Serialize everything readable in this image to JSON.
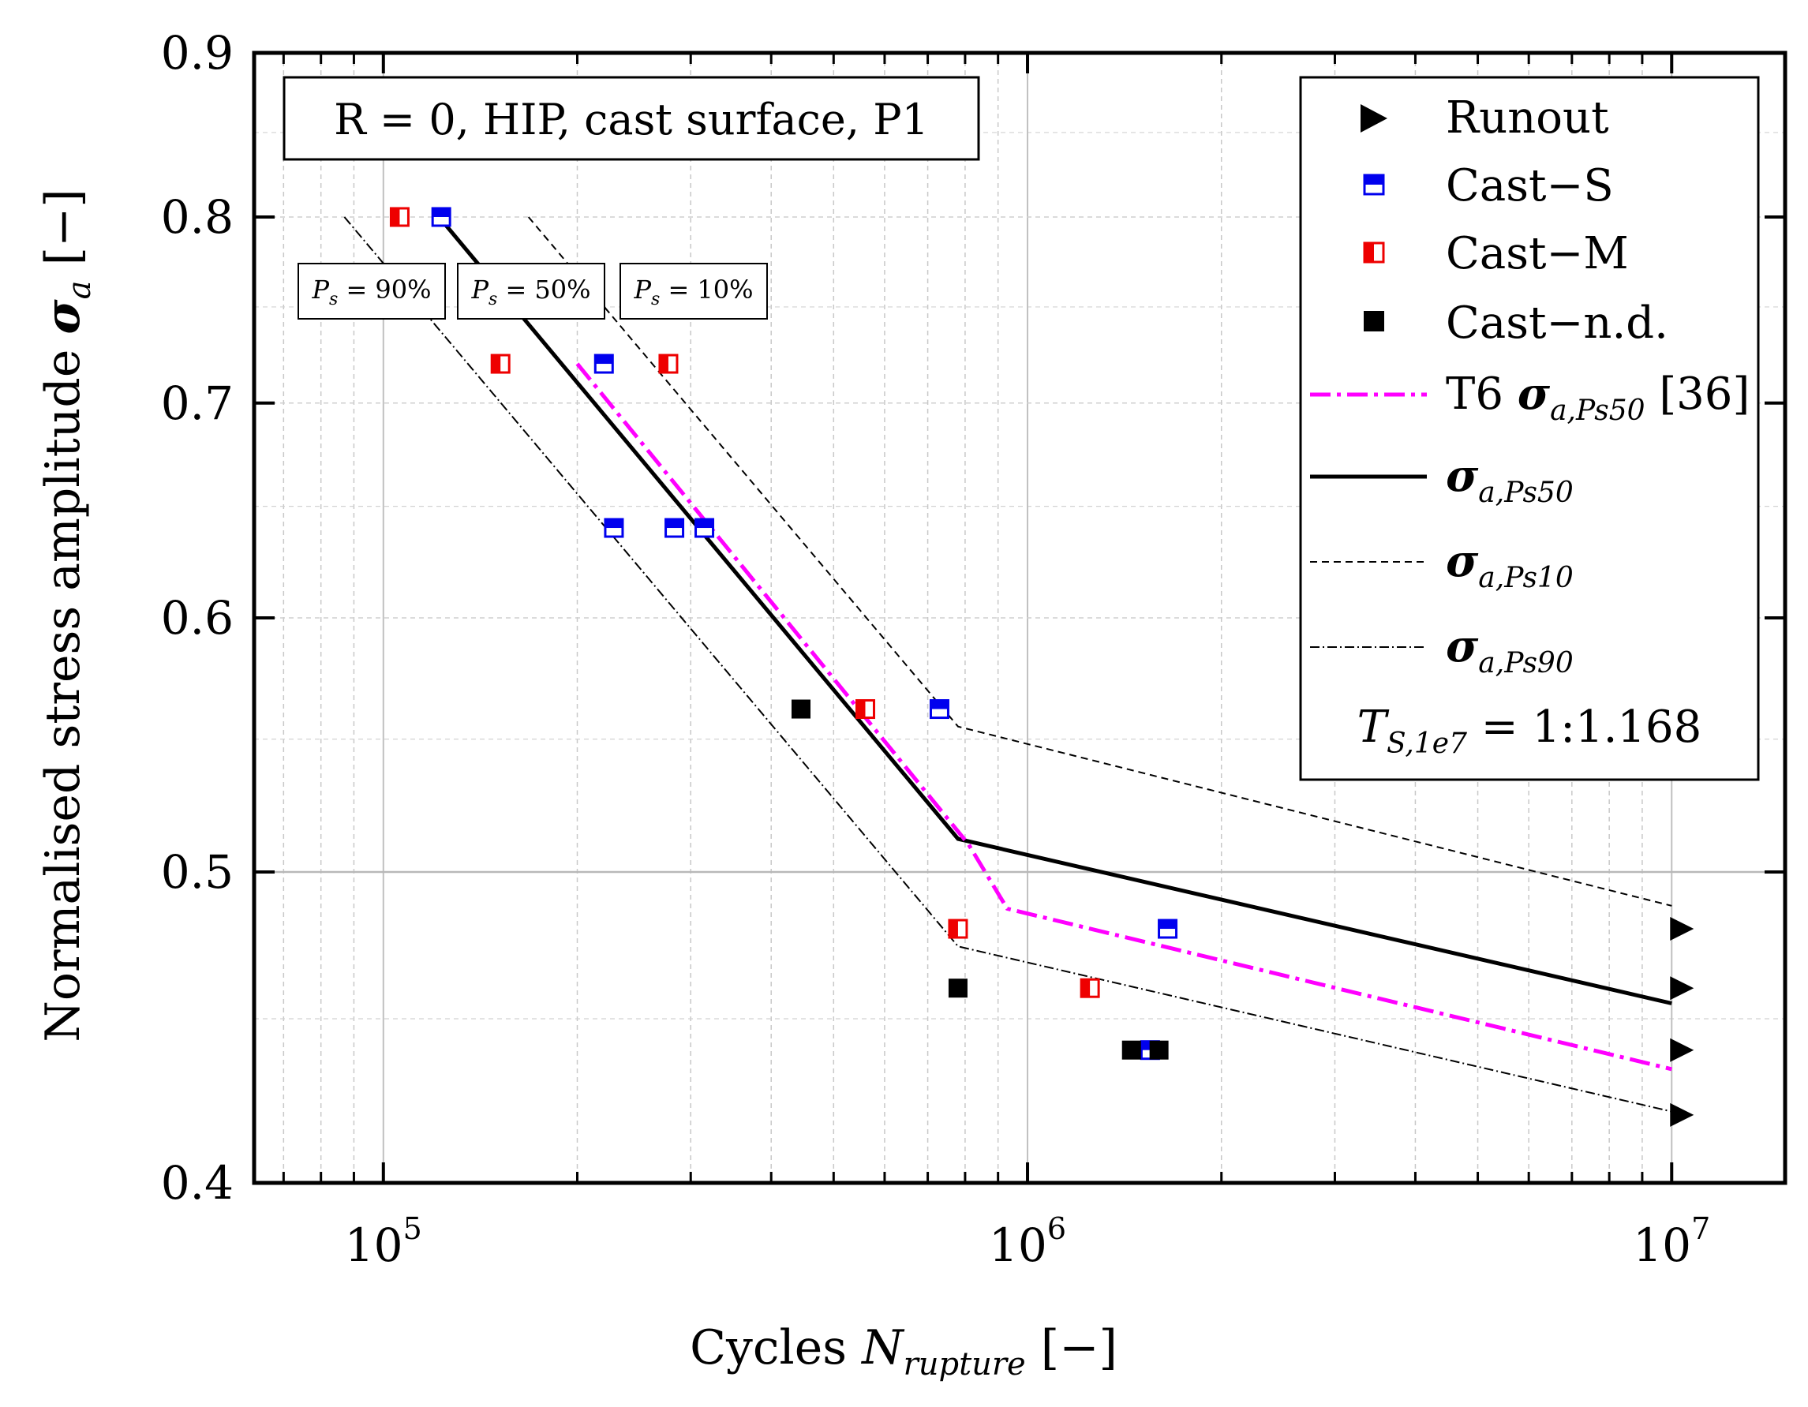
{
  "chart_data": {
    "type": "scatter",
    "x_scale": "log",
    "xlim": [
      63000,
      15000000
    ],
    "ylim": [
      0.4,
      0.9
    ],
    "y_scale": "log",
    "xlabel_main": "Cycles",
    "xlabel_symbol": "N",
    "xlabel_sub": "rupture",
    "xlabel_unit": "[−]",
    "ylabel_main": "Normalised stress amplitude",
    "ylabel_symbol": "σ",
    "ylabel_sub": "a",
    "ylabel_unit": "[−]",
    "x_ticks": [
      {
        "value": 100000,
        "base": "10",
        "exp": "5"
      },
      {
        "value": 1000000,
        "base": "10",
        "exp": "6"
      },
      {
        "value": 10000000,
        "base": "10",
        "exp": "7"
      }
    ],
    "y_ticks": [
      {
        "value": 0.4,
        "label": "0.4"
      },
      {
        "value": 0.5,
        "label": "0.5"
      },
      {
        "value": 0.6,
        "label": "0.6"
      },
      {
        "value": 0.7,
        "label": "0.7"
      },
      {
        "value": 0.8,
        "label": "0.8"
      },
      {
        "value": 0.9,
        "label": "0.9"
      }
    ],
    "condition_label": "R = 0, HIP, cast surface, P1",
    "prob_labels": [
      {
        "sym": "P",
        "sub": "s",
        "text": " = 90%"
      },
      {
        "sym": "P",
        "sub": "s",
        "text": " = 50%"
      },
      {
        "sym": "P",
        "sub": "s",
        "text": " = 10%"
      }
    ],
    "legend": {
      "runout": "Runout",
      "cast_s": "Cast−S",
      "cast_m": "Cast−M",
      "cast_nd": "Cast−n.d.",
      "t6_prefix": "T6 ",
      "t6_sym": "σ",
      "t6_sub": "a,Ps50",
      "t6_ref": " [36]",
      "ps50_sym": "σ",
      "ps50_sub": "a,Ps50",
      "ps10_sym": "σ",
      "ps10_sub": "a,Ps10",
      "ps90_sym": "σ",
      "ps90_sub": "a,Ps90",
      "ts_sym": "T",
      "ts_sub": "S,1e7",
      "ts_value": " = 1:1.168"
    },
    "colors": {
      "blue": "#0000ee",
      "red": "#ee0000",
      "magenta": "#ff00ff",
      "black": "#000000"
    },
    "series": [
      {
        "name": "Cast-S",
        "color": "#0000ee",
        "points": [
          [
            123000,
            0.8
          ],
          [
            220000,
            0.72
          ],
          [
            228000,
            0.64
          ],
          [
            283000,
            0.64
          ],
          [
            315000,
            0.64
          ],
          [
            730000,
            0.562
          ],
          [
            1650000,
            0.48
          ],
          [
            1550000,
            0.44
          ]
        ]
      },
      {
        "name": "Cast-M",
        "color": "#ee0000",
        "points": [
          [
            106000,
            0.8
          ],
          [
            152000,
            0.72
          ],
          [
            277000,
            0.72
          ],
          [
            560000,
            0.562
          ],
          [
            780000,
            0.48
          ],
          [
            1250000,
            0.46
          ]
        ]
      },
      {
        "name": "Cast-n.d.",
        "points": [
          [
            445000,
            0.562
          ],
          [
            780000,
            0.46
          ],
          [
            1450000,
            0.44
          ],
          [
            1600000,
            0.44
          ]
        ]
      },
      {
        "name": "Runout",
        "points": [
          [
            10000000,
            0.48
          ],
          [
            10000000,
            0.46
          ],
          [
            10000000,
            0.44
          ],
          [
            10000000,
            0.42
          ]
        ]
      }
    ],
    "lines": [
      {
        "name": "Ps50",
        "style": "solid",
        "points": [
          [
            122000,
            0.8
          ],
          [
            780000,
            0.512
          ],
          [
            10000000,
            0.455
          ]
        ]
      },
      {
        "name": "Ps10",
        "style": "dashed",
        "points": [
          [
            168000,
            0.8
          ],
          [
            780000,
            0.555
          ],
          [
            10000000,
            0.488
          ]
        ]
      },
      {
        "name": "Ps90",
        "style": "dashdot",
        "points": [
          [
            87000,
            0.8
          ],
          [
            780000,
            0.474
          ],
          [
            10000000,
            0.421
          ]
        ]
      },
      {
        "name": "T6",
        "style": "magenta-dashdot",
        "points": [
          [
            200000,
            0.72
          ],
          [
            810000,
            0.51
          ],
          [
            930000,
            0.487
          ],
          [
            10000000,
            0.434
          ]
        ]
      }
    ]
  }
}
